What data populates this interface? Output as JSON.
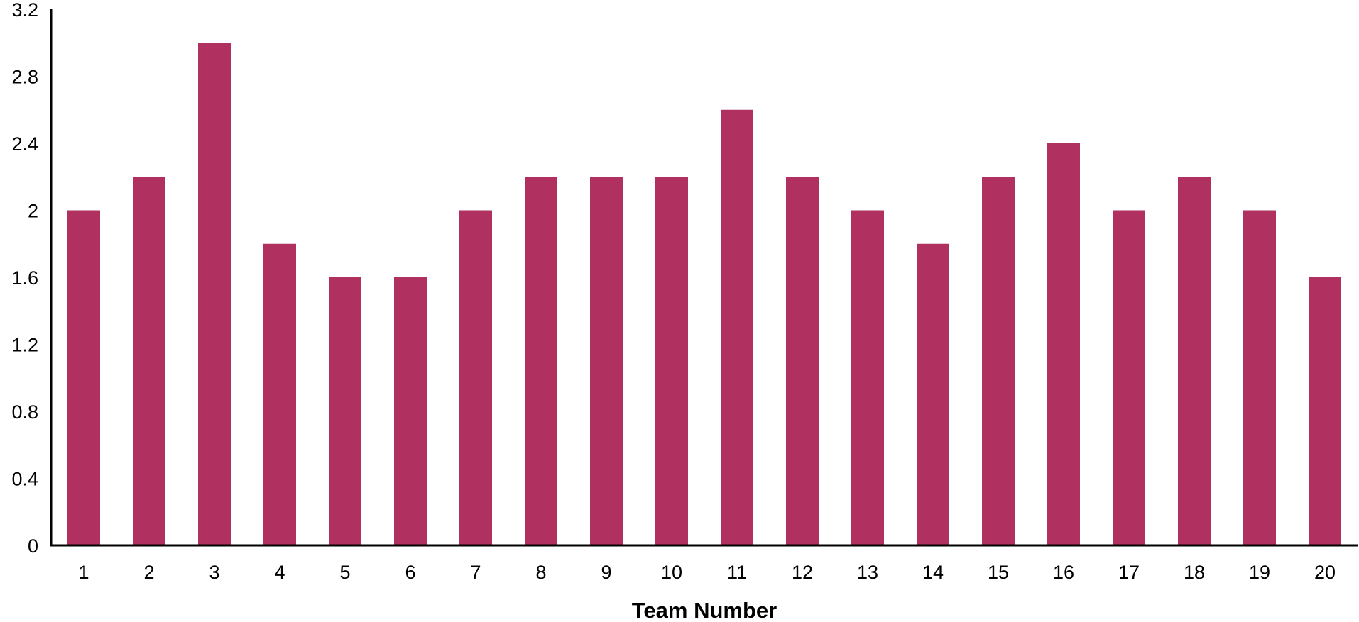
{
  "chart_data": {
    "type": "bar",
    "title": "",
    "xlabel": "Team Number",
    "ylabel": "",
    "categories": [
      "1",
      "2",
      "3",
      "4",
      "5",
      "6",
      "7",
      "8",
      "9",
      "10",
      "11",
      "12",
      "13",
      "14",
      "15",
      "16",
      "17",
      "18",
      "19",
      "20"
    ],
    "values": [
      2.0,
      2.2,
      3.0,
      1.8,
      1.6,
      1.6,
      2.0,
      2.2,
      2.2,
      2.2,
      2.6,
      2.2,
      2.0,
      1.8,
      2.2,
      2.4,
      2.0,
      2.2,
      2.0,
      1.6
    ],
    "ylim": [
      0,
      3.2
    ],
    "yticks": [
      "0",
      "0.4",
      "0.8",
      "1.2",
      "1.6",
      "2",
      "2.4",
      "2.8",
      "3.2"
    ],
    "grid": false,
    "legend": "none",
    "bar_color": "#b03060"
  }
}
